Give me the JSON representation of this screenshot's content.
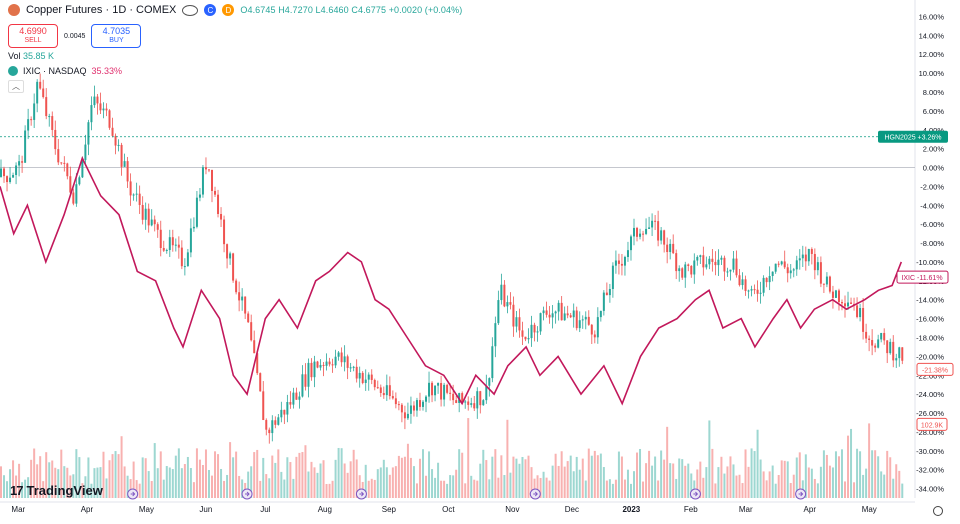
{
  "header": {
    "title": "Copper Futures · 1D · COMEX",
    "badge_c": "C",
    "badge_d": "D",
    "ohlc": "O4.6745 H4.7270 L4.6460 C4.6775 +0.0020 (+0.04%)"
  },
  "trade": {
    "sell_price": "4.6990",
    "sell_label": "SELL",
    "spread": "0.0045",
    "buy_price": "4.7035",
    "buy_label": "BUY"
  },
  "volume": {
    "label": "Vol",
    "value": "35.85 K"
  },
  "compare": {
    "symbol": "IXIC · NASDAQ",
    "value": "35.33%"
  },
  "collapse_icon": "chevron-up-icon",
  "logo": {
    "mark": "17",
    "text": "TradingView"
  },
  "colors": {
    "up": "#26a69a",
    "down": "#ef5350",
    "compare": "#c2185b",
    "hgn": "#089981"
  },
  "chart_data": {
    "type": "line",
    "title": "Copper Futures · 1D · COMEX",
    "y_axis_ticks": [
      "16.00%",
      "14.00%",
      "12.00%",
      "10.00%",
      "8.00%",
      "6.00%",
      "4.00%",
      "2.00%",
      "0.00%",
      "-2.00%",
      "-4.00%",
      "-6.00%",
      "-8.00%",
      "-10.00%",
      "-12.00%",
      "-14.00%",
      "-16.00%",
      "-18.00%",
      "-20.00%",
      "-22.00%",
      "-24.00%",
      "-26.00%",
      "-28.00%",
      "-30.00%",
      "-32.00%",
      "-34.00%"
    ],
    "ylim": [
      -35,
      17
    ],
    "x_axis_ticks": [
      {
        "label": "Mar",
        "x": 0.02
      },
      {
        "label": "Apr",
        "x": 0.095
      },
      {
        "label": "May",
        "x": 0.16
      },
      {
        "label": "Jun",
        "x": 0.225
      },
      {
        "label": "Jul",
        "x": 0.29
      },
      {
        "label": "Aug",
        "x": 0.355
      },
      {
        "label": "Sep",
        "x": 0.425
      },
      {
        "label": "Oct",
        "x": 0.49
      },
      {
        "label": "Nov",
        "x": 0.56
      },
      {
        "label": "Dec",
        "x": 0.625
      },
      {
        "label": "2023",
        "x": 0.69
      },
      {
        "label": "Feb",
        "x": 0.755
      },
      {
        "label": "Mar",
        "x": 0.815
      },
      {
        "label": "Apr",
        "x": 0.885
      },
      {
        "label": "May",
        "x": 0.95
      }
    ],
    "series": [
      {
        "name": "Copper Futures (HG1!) % change",
        "style": "candles",
        "points": [
          [
            0,
            -1
          ],
          [
            0.02,
            0
          ],
          [
            0.04,
            9
          ],
          [
            0.06,
            2
          ],
          [
            0.08,
            -3
          ],
          [
            0.1,
            7
          ],
          [
            0.12,
            5
          ],
          [
            0.14,
            -2
          ],
          [
            0.17,
            -7
          ],
          [
            0.2,
            -10
          ],
          [
            0.225,
            1
          ],
          [
            0.25,
            -10
          ],
          [
            0.27,
            -17
          ],
          [
            0.29,
            -28
          ],
          [
            0.315,
            -25
          ],
          [
            0.34,
            -21
          ],
          [
            0.365,
            -20
          ],
          [
            0.395,
            -22
          ],
          [
            0.42,
            -24
          ],
          [
            0.445,
            -26
          ],
          [
            0.47,
            -23
          ],
          [
            0.5,
            -25
          ],
          [
            0.53,
            -24
          ],
          [
            0.545,
            -13
          ],
          [
            0.57,
            -18
          ],
          [
            0.6,
            -15
          ],
          [
            0.63,
            -16
          ],
          [
            0.65,
            -17
          ],
          [
            0.67,
            -11
          ],
          [
            0.7,
            -6
          ],
          [
            0.72,
            -7
          ],
          [
            0.745,
            -11
          ],
          [
            0.77,
            -10
          ],
          [
            0.8,
            -10
          ],
          [
            0.82,
            -14
          ],
          [
            0.845,
            -10
          ],
          [
            0.865,
            -11
          ],
          [
            0.885,
            -9
          ],
          [
            0.905,
            -13
          ],
          [
            0.93,
            -14
          ],
          [
            0.95,
            -18
          ],
          [
            0.97,
            -19
          ],
          [
            0.985,
            -20
          ]
        ],
        "last_value_label": "-21.38%"
      },
      {
        "name": "IXIC · NASDAQ",
        "style": "line",
        "points": [
          [
            0,
            -2
          ],
          [
            0.015,
            -7
          ],
          [
            0.03,
            -4
          ],
          [
            0.05,
            -10
          ],
          [
            0.07,
            -5
          ],
          [
            0.09,
            1
          ],
          [
            0.11,
            -3
          ],
          [
            0.13,
            -5
          ],
          [
            0.15,
            -11
          ],
          [
            0.17,
            -12
          ],
          [
            0.19,
            -17
          ],
          [
            0.2,
            -19
          ],
          [
            0.22,
            -13
          ],
          [
            0.24,
            -16
          ],
          [
            0.255,
            -22
          ],
          [
            0.27,
            -24
          ],
          [
            0.29,
            -16
          ],
          [
            0.305,
            -14
          ],
          [
            0.325,
            -17
          ],
          [
            0.345,
            -12
          ],
          [
            0.36,
            -11
          ],
          [
            0.38,
            -9
          ],
          [
            0.395,
            -10
          ],
          [
            0.41,
            -14
          ],
          [
            0.425,
            -15
          ],
          [
            0.445,
            -18
          ],
          [
            0.465,
            -21
          ],
          [
            0.485,
            -22
          ],
          [
            0.505,
            -25
          ],
          [
            0.52,
            -22
          ],
          [
            0.54,
            -24
          ],
          [
            0.555,
            -21
          ],
          [
            0.575,
            -19
          ],
          [
            0.59,
            -22
          ],
          [
            0.61,
            -20
          ],
          [
            0.635,
            -24
          ],
          [
            0.66,
            -21
          ],
          [
            0.68,
            -25
          ],
          [
            0.7,
            -20
          ],
          [
            0.72,
            -17
          ],
          [
            0.74,
            -16
          ],
          [
            0.76,
            -14
          ],
          [
            0.775,
            -13
          ],
          [
            0.79,
            -17
          ],
          [
            0.81,
            -16
          ],
          [
            0.825,
            -19
          ],
          [
            0.845,
            -16
          ],
          [
            0.86,
            -14
          ],
          [
            0.875,
            -17
          ],
          [
            0.89,
            -15
          ],
          [
            0.91,
            -14
          ],
          [
            0.925,
            -15
          ],
          [
            0.945,
            -14
          ],
          [
            0.96,
            -13
          ],
          [
            0.975,
            -12.5
          ],
          [
            0.985,
            -10
          ]
        ],
        "last_value_label": "-11.61%",
        "label": "IXIC"
      },
      {
        "name": "Volume",
        "style": "bars",
        "values_desc": "daily volume histogram",
        "last_value_label": "102.9K"
      }
    ],
    "annotations": [
      {
        "label": "HGN2025",
        "value": "+3.26%",
        "y": 3.26
      }
    ],
    "event_markers": [
      0.145,
      0.27,
      0.395,
      0.585,
      0.76,
      0.875
    ]
  }
}
